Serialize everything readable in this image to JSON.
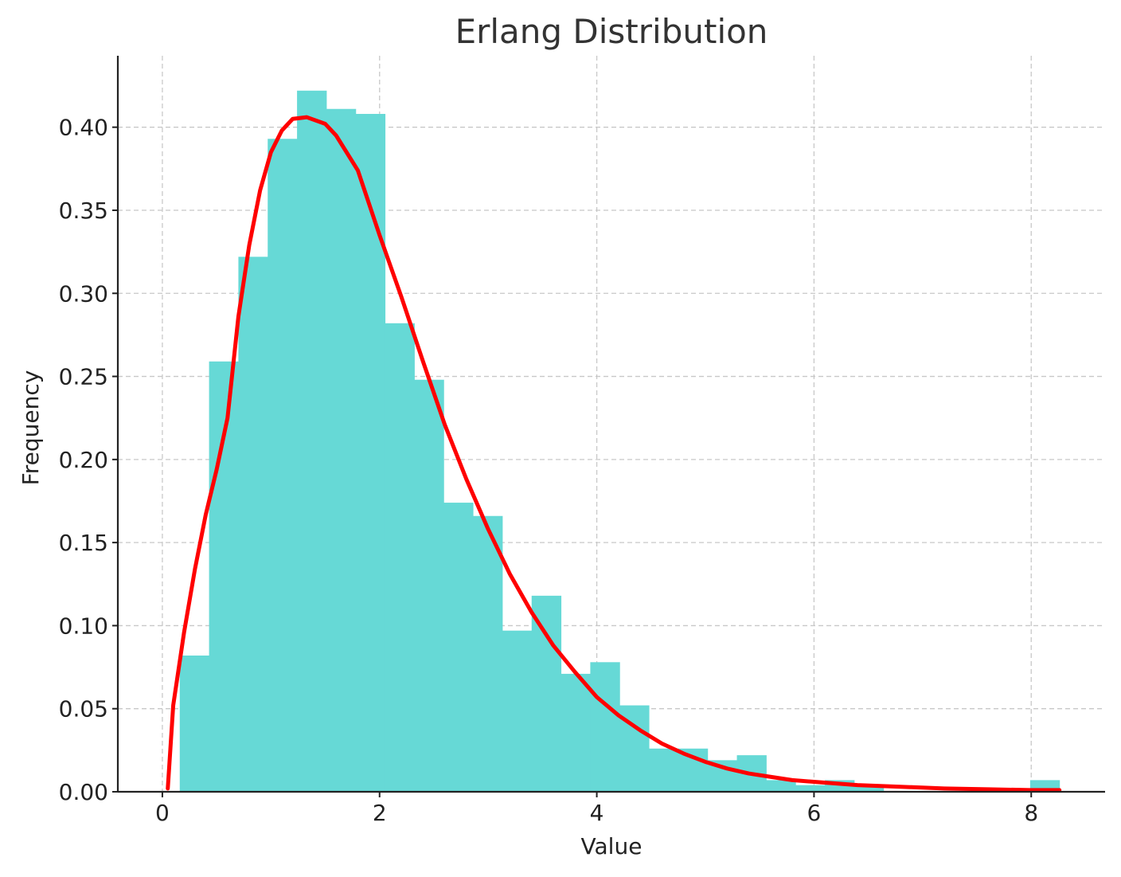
{
  "chart_data": {
    "type": "bar",
    "title": "Erlang Distribution",
    "xlabel": "Value",
    "ylabel": "Frequency",
    "xlim": [
      -0.41,
      8.68
    ],
    "ylim": [
      0,
      0.443
    ],
    "x_ticks": [
      0,
      2,
      4,
      6,
      8
    ],
    "y_ticks": [
      0.0,
      0.05,
      0.1,
      0.15,
      0.2,
      0.25,
      0.3,
      0.35,
      0.4
    ],
    "x_tick_labels": [
      "0",
      "2",
      "4",
      "6",
      "8"
    ],
    "y_tick_labels": [
      "0.00",
      "0.05",
      "0.10",
      "0.15",
      "0.20",
      "0.25",
      "0.30",
      "0.35",
      "0.40"
    ],
    "grid": true,
    "histogram": {
      "color": "#66d9d6",
      "bin_edges": [
        0.16,
        0.43,
        0.7,
        0.97,
        1.24,
        1.51,
        1.78,
        2.05,
        2.32,
        2.59,
        2.86,
        3.13,
        3.4,
        3.67,
        3.94,
        4.21,
        4.48,
        4.75,
        5.02,
        5.29,
        5.56,
        5.83,
        6.1,
        6.37,
        6.64,
        6.91,
        7.18,
        7.45,
        7.72,
        7.99,
        8.26
      ],
      "values": [
        0.082,
        0.259,
        0.322,
        0.393,
        0.422,
        0.411,
        0.408,
        0.282,
        0.248,
        0.174,
        0.166,
        0.097,
        0.118,
        0.071,
        0.078,
        0.052,
        0.026,
        0.026,
        0.019,
        0.022,
        0.007,
        0.004,
        0.007,
        0.004,
        0.0,
        0.0,
        0.0,
        0.0,
        0.0,
        0.007
      ]
    },
    "pdf_curve": {
      "color": "#ff0000",
      "shape_k": 2,
      "rate": 0.75,
      "x_start": 0.05,
      "x_end": 8.26,
      "points": [
        [
          0.05,
          0.002
        ],
        [
          0.1,
          0.052
        ],
        [
          0.2,
          0.096
        ],
        [
          0.3,
          0.134
        ],
        [
          0.4,
          0.167
        ],
        [
          0.5,
          0.194
        ],
        [
          0.6,
          0.225
        ],
        [
          0.7,
          0.286
        ],
        [
          0.8,
          0.329
        ],
        [
          0.9,
          0.362
        ],
        [
          1.0,
          0.385
        ],
        [
          1.1,
          0.398
        ],
        [
          1.2,
          0.405
        ],
        [
          1.33,
          0.406
        ],
        [
          1.5,
          0.402
        ],
        [
          1.6,
          0.395
        ],
        [
          1.8,
          0.374
        ],
        [
          2.0,
          0.335
        ],
        [
          2.2,
          0.298
        ],
        [
          2.4,
          0.259
        ],
        [
          2.6,
          0.221
        ],
        [
          2.8,
          0.188
        ],
        [
          3.0,
          0.158
        ],
        [
          3.2,
          0.131
        ],
        [
          3.4,
          0.108
        ],
        [
          3.6,
          0.088
        ],
        [
          3.8,
          0.072
        ],
        [
          4.0,
          0.057
        ],
        [
          4.2,
          0.046
        ],
        [
          4.4,
          0.037
        ],
        [
          4.6,
          0.029
        ],
        [
          4.8,
          0.023
        ],
        [
          5.0,
          0.018
        ],
        [
          5.2,
          0.014
        ],
        [
          5.4,
          0.011
        ],
        [
          5.6,
          0.009
        ],
        [
          5.8,
          0.007
        ],
        [
          6.0,
          0.006
        ],
        [
          6.4,
          0.004
        ],
        [
          6.8,
          0.003
        ],
        [
          7.2,
          0.002
        ],
        [
          7.6,
          0.0015
        ],
        [
          8.0,
          0.001
        ],
        [
          8.26,
          0.001
        ]
      ]
    }
  }
}
